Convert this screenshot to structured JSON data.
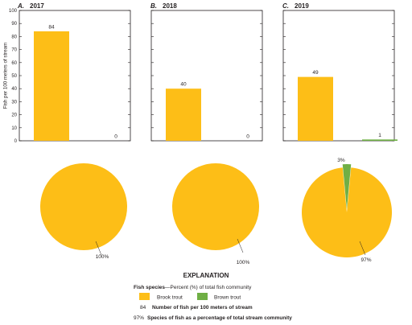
{
  "colors": {
    "brook_trout": "#FDBE17",
    "brown_trout": "#6FAF45",
    "axis": "#231f20",
    "grid": "#9a9a9a"
  },
  "chart_data": [
    {
      "type": "bar",
      "panel_letter": "A.",
      "title": "2017",
      "ylabel": "Fish per 100 meters of stream",
      "ylim": [
        0,
        100
      ],
      "yticks": [
        0,
        10,
        20,
        30,
        40,
        50,
        60,
        70,
        80,
        90,
        100
      ],
      "series": [
        {
          "name": "Brook trout",
          "value": 84,
          "label": "84"
        },
        {
          "name": "Brown trout",
          "value": 0,
          "label": "0"
        }
      ]
    },
    {
      "type": "bar",
      "panel_letter": "B.",
      "title": "2018",
      "ylim": [
        0,
        100
      ],
      "series": [
        {
          "name": "Brook trout",
          "value": 40,
          "label": "40"
        },
        {
          "name": "Brown trout",
          "value": 0,
          "label": "0"
        }
      ]
    },
    {
      "type": "bar",
      "panel_letter": "C.",
      "title": "2019",
      "ylim": [
        0,
        100
      ],
      "series": [
        {
          "name": "Brook trout",
          "value": 49,
          "label": "49"
        },
        {
          "name": "Brown trout",
          "value": 1,
          "label": "1"
        }
      ]
    },
    {
      "type": "pie",
      "slices": [
        {
          "name": "Brook trout",
          "value": 100,
          "label": "100%"
        }
      ]
    },
    {
      "type": "pie",
      "slices": [
        {
          "name": "Brook trout",
          "value": 100,
          "label": "100%"
        }
      ]
    },
    {
      "type": "pie",
      "slices": [
        {
          "name": "Brook trout",
          "value": 97,
          "label": "97%"
        },
        {
          "name": "Brown trout",
          "value": 3,
          "label": "3%"
        }
      ]
    }
  ],
  "explanation": {
    "title": "EXPLANATION",
    "fish_species_heading": "Fish species",
    "fish_species_note": "—Percent (%) of total fish community",
    "brook_trout_label": "Brook trout",
    "brown_trout_label": "Brown trout",
    "count_example": "84",
    "count_description": "Number of fish per 100 meters of stream",
    "percent_example": "97%",
    "percent_description": "Species of fish as a percentage of total stream community"
  }
}
